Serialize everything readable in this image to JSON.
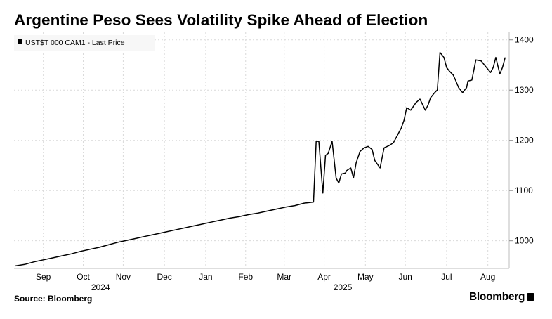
{
  "title": "Argentine Peso Sees Volatility Spike Ahead of Election",
  "source": "Source: Bloomberg",
  "brand": "Bloomberg",
  "chart_data": {
    "type": "line",
    "legend": "UST$T 000 CAM1 - Last Price",
    "legend_position": "top-left",
    "grid": true,
    "line_color": "#000000",
    "ylim": [
      945,
      1415
    ],
    "xlim": [
      "2024-08-25",
      "2025-09-01"
    ],
    "y_ticks": [
      1000,
      1100,
      1200,
      1300,
      1400
    ],
    "y_tick_labels": [
      "1000",
      "1100",
      "1200",
      "1300",
      "1400"
    ],
    "x_ticks": [
      {
        "label": "Sep",
        "date": "2024-09-16"
      },
      {
        "label": "Oct",
        "date": "2024-10-16"
      },
      {
        "label": "Nov",
        "date": "2024-11-15"
      },
      {
        "label": "Dec",
        "date": "2024-12-16"
      },
      {
        "label": "Jan",
        "date": "2025-01-16"
      },
      {
        "label": "Feb",
        "date": "2025-02-15"
      },
      {
        "label": "Mar",
        "date": "2025-03-16"
      },
      {
        "label": "Apr",
        "date": "2025-04-15"
      },
      {
        "label": "May",
        "date": "2025-05-16"
      },
      {
        "label": "Jun",
        "date": "2025-06-15"
      },
      {
        "label": "Jul",
        "date": "2025-07-16"
      },
      {
        "label": "Aug",
        "date": "2025-08-16"
      }
    ],
    "year_labels": [
      {
        "label": "2024",
        "date": "2024-10-29"
      },
      {
        "label": "2025",
        "date": "2025-04-29"
      }
    ],
    "series": [
      {
        "x": [
          "2024-08-26",
          "2024-09-02",
          "2024-09-09",
          "2024-09-16",
          "2024-09-23",
          "2024-09-30",
          "2024-10-07",
          "2024-10-14",
          "2024-10-21",
          "2024-10-28",
          "2024-11-04",
          "2024-11-11",
          "2024-11-18",
          "2024-11-25",
          "2024-12-02",
          "2024-12-09",
          "2024-12-16",
          "2024-12-23",
          "2024-12-30",
          "2025-01-06",
          "2025-01-13",
          "2025-01-20",
          "2025-01-27",
          "2025-02-03",
          "2025-02-10",
          "2025-02-17",
          "2025-02-24",
          "2025-03-03",
          "2025-03-10",
          "2025-03-17",
          "2025-03-24",
          "2025-03-31",
          "2025-04-07",
          "2025-04-09",
          "2025-04-11",
          "2025-04-14",
          "2025-04-16",
          "2025-04-18",
          "2025-04-21",
          "2025-04-24",
          "2025-04-26",
          "2025-04-28",
          "2025-05-01",
          "2025-05-02",
          "2025-05-05",
          "2025-05-07",
          "2025-05-09",
          "2025-05-12",
          "2025-05-15",
          "2025-05-18",
          "2025-05-21",
          "2025-05-23",
          "2025-05-27",
          "2025-05-30",
          "2025-06-03",
          "2025-06-06",
          "2025-06-09",
          "2025-06-12",
          "2025-06-14",
          "2025-06-16",
          "2025-06-19",
          "2025-06-23",
          "2025-06-26",
          "2025-06-30",
          "2025-07-02",
          "2025-07-04",
          "2025-07-07",
          "2025-07-09",
          "2025-07-11",
          "2025-07-14",
          "2025-07-16",
          "2025-07-18",
          "2025-07-21",
          "2025-07-23",
          "2025-07-25",
          "2025-07-28",
          "2025-07-31",
          "2025-08-01",
          "2025-08-04",
          "2025-08-07",
          "2025-08-11",
          "2025-08-14",
          "2025-08-18",
          "2025-08-20",
          "2025-08-22",
          "2025-08-25",
          "2025-08-27",
          "2025-08-29"
        ],
        "values": [
          950,
          953,
          958,
          962,
          966,
          970,
          974,
          979,
          983,
          987,
          992,
          997,
          1001,
          1005,
          1009,
          1013,
          1017,
          1021,
          1025,
          1029,
          1033,
          1037,
          1041,
          1045,
          1048,
          1052,
          1055,
          1059,
          1063,
          1067,
          1070,
          1075,
          1077,
          1198,
          1198,
          1095,
          1170,
          1174,
          1198,
          1125,
          1115,
          1133,
          1135,
          1140,
          1145,
          1125,
          1155,
          1178,
          1185,
          1188,
          1182,
          1160,
          1145,
          1185,
          1190,
          1195,
          1210,
          1225,
          1240,
          1265,
          1260,
          1275,
          1282,
          1260,
          1270,
          1285,
          1295,
          1300,
          1375,
          1365,
          1345,
          1338,
          1330,
          1318,
          1305,
          1295,
          1305,
          1318,
          1320,
          1360,
          1358,
          1348,
          1335,
          1345,
          1365,
          1332,
          1345,
          1365
        ]
      }
    ]
  }
}
